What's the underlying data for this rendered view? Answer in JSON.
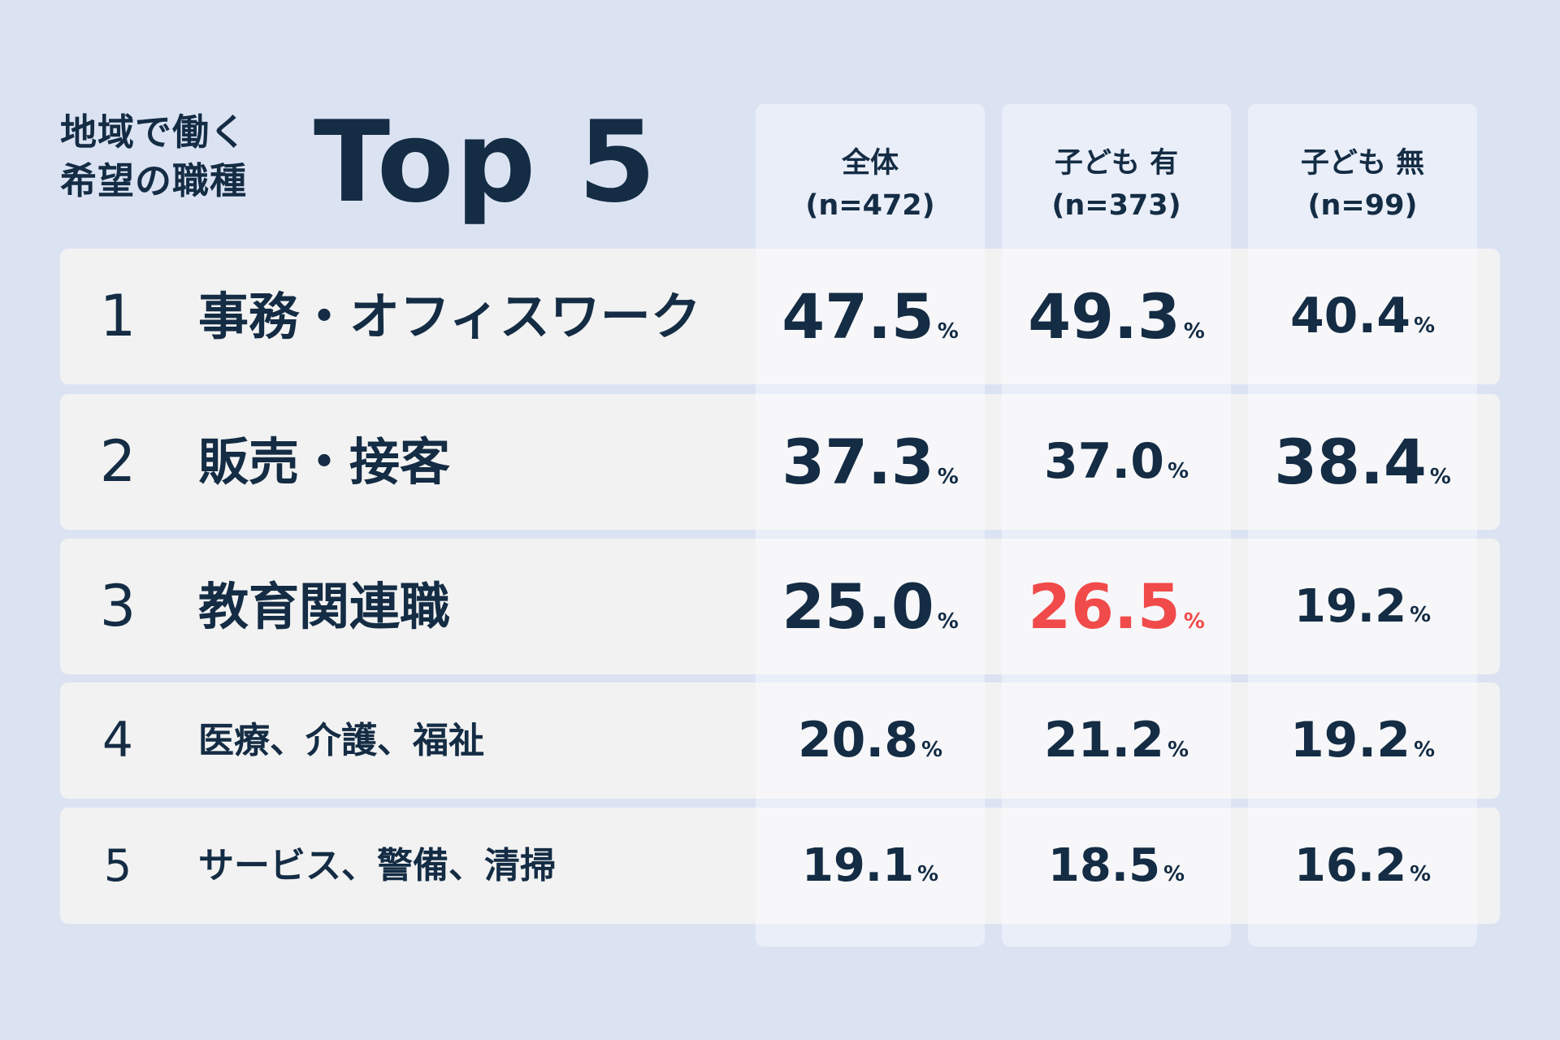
{
  "title": {
    "line1": "地域で働く",
    "line2": "希望の職種",
    "big": "Top 5"
  },
  "colors": {
    "background": "#dbe3f3",
    "text": "#142c44",
    "highlight": "#f14a4a",
    "row": "#f2f2f2",
    "column": "#e9eef8"
  },
  "columns": [
    {
      "label": "全体",
      "n": "(n=472)"
    },
    {
      "label": "子ども 有",
      "n": "(n=373)"
    },
    {
      "label": "子ども 無",
      "n": "(n=99)"
    }
  ],
  "percent_sign": "%",
  "chart_data": {
    "type": "table",
    "title": "地域で働く希望の職種 Top 5",
    "series": [
      {
        "name": "全体 (n=472)",
        "values": [
          47.5,
          37.3,
          25.0,
          20.8,
          19.1
        ]
      },
      {
        "name": "子ども 有 (n=373)",
        "values": [
          49.3,
          37.0,
          26.5,
          21.2,
          18.5
        ]
      },
      {
        "name": "子ども 無 (n=99)",
        "values": [
          40.4,
          38.4,
          19.2,
          19.2,
          16.2
        ]
      }
    ],
    "rows": [
      {
        "rank": "1",
        "label": "事務・オフィスワーク",
        "values": [
          "47.5",
          "49.3",
          "40.4"
        ]
      },
      {
        "rank": "2",
        "label": "販売・接客",
        "values": [
          "37.3",
          "37.0",
          "38.4"
        ]
      },
      {
        "rank": "3",
        "label": "教育関連職",
        "values": [
          "25.0",
          "26.5",
          "19.2"
        ]
      },
      {
        "rank": "4",
        "label": "医療、介護、福祉",
        "values": [
          "20.8",
          "21.2",
          "19.2"
        ]
      },
      {
        "rank": "5",
        "label": "サービス、警備、清掃",
        "values": [
          "19.1",
          "18.5",
          "16.2"
        ]
      }
    ],
    "highlighted_cell": {
      "row": "教育関連職",
      "column": "子ども 有",
      "color": "#f14a4a"
    }
  }
}
